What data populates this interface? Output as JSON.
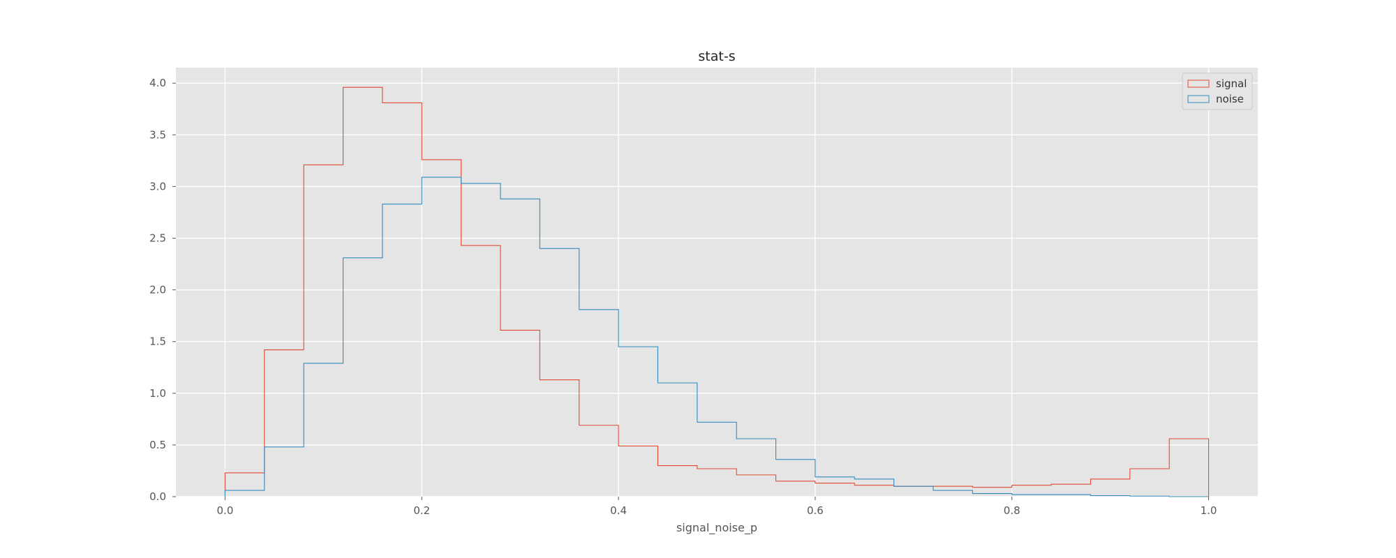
{
  "chart_data": {
    "type": "histogram-step",
    "title": "stat-s",
    "xlabel": "signal_noise_p",
    "ylabel": "",
    "xlim": [
      -0.05,
      1.05
    ],
    "ylim": [
      0,
      4.15
    ],
    "xticks": [
      "0.0",
      "0.2",
      "0.4",
      "0.6",
      "0.8",
      "1.0"
    ],
    "xtick_values": [
      0.0,
      0.2,
      0.4,
      0.6,
      0.8,
      1.0
    ],
    "yticks": [
      "0.0",
      "0.5",
      "1.0",
      "1.5",
      "2.0",
      "2.5",
      "3.0",
      "3.5",
      "4.0"
    ],
    "ytick_values": [
      0.0,
      0.5,
      1.0,
      1.5,
      2.0,
      2.5,
      3.0,
      3.5,
      4.0
    ],
    "grid": true,
    "legend_position": "top-right",
    "bin_edges": [
      0.0,
      0.04,
      0.08,
      0.12,
      0.16,
      0.2,
      0.24,
      0.28,
      0.32,
      0.36,
      0.4,
      0.44,
      0.48,
      0.52,
      0.56,
      0.6,
      0.64,
      0.68,
      0.72,
      0.76,
      0.8,
      0.84,
      0.88,
      0.92,
      0.96,
      1.0
    ],
    "series": [
      {
        "name": "signal",
        "color": "#E24A33",
        "values": [
          0.23,
          1.42,
          3.21,
          3.96,
          3.81,
          3.26,
          2.43,
          1.61,
          1.13,
          0.69,
          0.49,
          0.3,
          0.27,
          0.21,
          0.15,
          0.13,
          0.11,
          0.1,
          0.1,
          0.09,
          0.11,
          0.12,
          0.17,
          0.27,
          0.56
        ]
      },
      {
        "name": "noise",
        "color": "#348ABD",
        "values": [
          0.06,
          0.48,
          1.29,
          2.31,
          2.83,
          3.09,
          3.03,
          2.88,
          2.4,
          1.81,
          1.45,
          1.1,
          0.72,
          0.56,
          0.36,
          0.19,
          0.17,
          0.1,
          0.06,
          0.03,
          0.02,
          0.02,
          0.01,
          0.005,
          0.0
        ]
      }
    ]
  }
}
